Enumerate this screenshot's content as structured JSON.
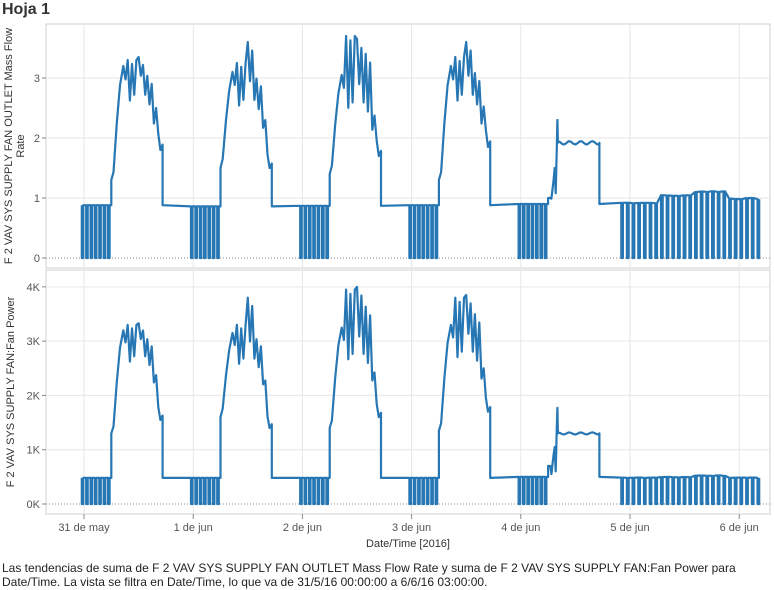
{
  "sheet": {
    "title": "Hoja 1"
  },
  "caption": "Las tendencias de suma de F 2 VAV SYS SUPPLY FAN OUTLET Mass Flow Rate y suma de F 2 VAV SYS SUPPLY FAN:Fan Power para Date/Time. La vista se filtra en Date/Time, lo que va de 31/5/16 00:00:00 a 6/6/16 03:00:00.",
  "colors": {
    "series": "#2777b4",
    "grid": "#e6e6e6",
    "zero": "#888888",
    "border": "#d0d0d0"
  },
  "chart_data": [
    {
      "type": "line",
      "ylabel_lines": [
        "F 2 VAV SYS SUPPLY FAN OUTLET Mass Flow",
        "Rate"
      ],
      "ylim": [
        0,
        3.8
      ],
      "yticks": [
        0,
        1,
        2,
        3
      ],
      "ytick_labels": [
        "0",
        "1",
        "2",
        "3"
      ],
      "grid": true,
      "series": [
        {
          "shape": "daily",
          "days": [
            {
              "day": 0,
              "off": 0.88,
              "peak": [
                3.2,
                3.3,
                3.35
              ],
              "start": 1.3,
              "end": 1.8
            },
            {
              "day": 1,
              "off": 0.86,
              "peak": [
                3.1,
                3.25,
                3.6
              ],
              "start": 1.5,
              "end": 1.5
            },
            {
              "day": 2,
              "off": 0.87,
              "peak": [
                3.05,
                3.7,
                3.65
              ],
              "start": 1.4,
              "end": 1.7
            },
            {
              "day": 3,
              "off": 0.88,
              "peak": [
                3.2,
                3.35,
                3.6
              ],
              "start": 1.3,
              "end": 1.85
            },
            {
              "day": 4,
              "off": 0.9,
              "flat": 1.92,
              "spike": 2.3,
              "start": 1.0,
              "end": 1.9
            },
            {
              "day": 5,
              "off": 0.9,
              "weekend": [
                0.93,
                1.05,
                1.12,
                1.0
              ]
            }
          ]
        }
      ]
    },
    {
      "type": "line",
      "ylabel_lines": [
        "F 2 VAV SYS SUPPLY FAN:Fan Power"
      ],
      "ylim": [
        0,
        4200
      ],
      "yticks": [
        0,
        1000,
        2000,
        3000,
        4000
      ],
      "ytick_labels": [
        "0K",
        "1K",
        "2K",
        "3K",
        "4K"
      ],
      "grid": true,
      "series": [
        {
          "shape": "daily",
          "days": [
            {
              "day": 0,
              "off": 480,
              "peak": [
                3200,
                3300,
                3330
              ],
              "start": 1300,
              "end": 1550
            },
            {
              "day": 1,
              "off": 480,
              "peak": [
                3150,
                3300,
                3800
              ],
              "start": 1600,
              "end": 1400
            },
            {
              "day": 2,
              "off": 480,
              "peak": [
                3250,
                3950,
                4000
              ],
              "start": 1400,
              "end": 1600
            },
            {
              "day": 3,
              "off": 480,
              "peak": [
                3300,
                3800,
                3850
              ],
              "start": 1350,
              "end": 1700
            },
            {
              "day": 4,
              "off": 500,
              "flat": 1300,
              "spike": 1770,
              "start": 700,
              "end": 1300
            },
            {
              "day": 5,
              "off": 480,
              "weekend": [
                490,
                500,
                530,
                490
              ]
            }
          ]
        }
      ]
    }
  ],
  "x_axis": {
    "title": "Date/Time [2016]",
    "ticks": [
      {
        "day": 0,
        "label": "31 de may"
      },
      {
        "day": 1,
        "label": "1 de jun"
      },
      {
        "day": 2,
        "label": "2 de jun"
      },
      {
        "day": 3,
        "label": "3 de jun"
      },
      {
        "day": 4,
        "label": "4 de jun"
      },
      {
        "day": 5,
        "label": "5 de jun"
      },
      {
        "day": 6,
        "label": "6 de jun"
      }
    ],
    "range_days": [
      -0.3,
      6.2
    ]
  }
}
